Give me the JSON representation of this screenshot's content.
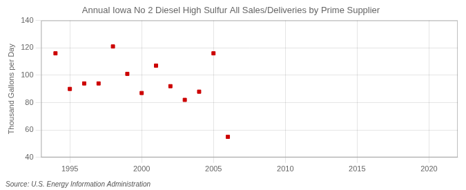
{
  "chart_data": {
    "type": "scatter",
    "title": "Annual Iowa No 2 Diesel High Sulfur All Sales/Deliveries by Prime Supplier",
    "ylabel": "Thousand Gallons per Day",
    "annotations": [
      "Source: U.S. Energy Information Administration"
    ],
    "x": [
      1994,
      1995,
      1996,
      1997,
      1998,
      1999,
      2000,
      2001,
      2002,
      2003,
      2004,
      2005,
      2006
    ],
    "values": [
      116,
      90,
      94,
      94,
      121,
      101,
      87,
      107,
      92,
      82,
      88,
      116,
      55
    ],
    "color": "#cc0000",
    "marker": "square",
    "xlim": [
      1993,
      2022
    ],
    "ylim": [
      40,
      140
    ],
    "xticks": [
      1995,
      2000,
      2005,
      2010,
      2015,
      2020
    ],
    "yticks": [
      40,
      60,
      80,
      100,
      120,
      140
    ],
    "grid": true
  }
}
